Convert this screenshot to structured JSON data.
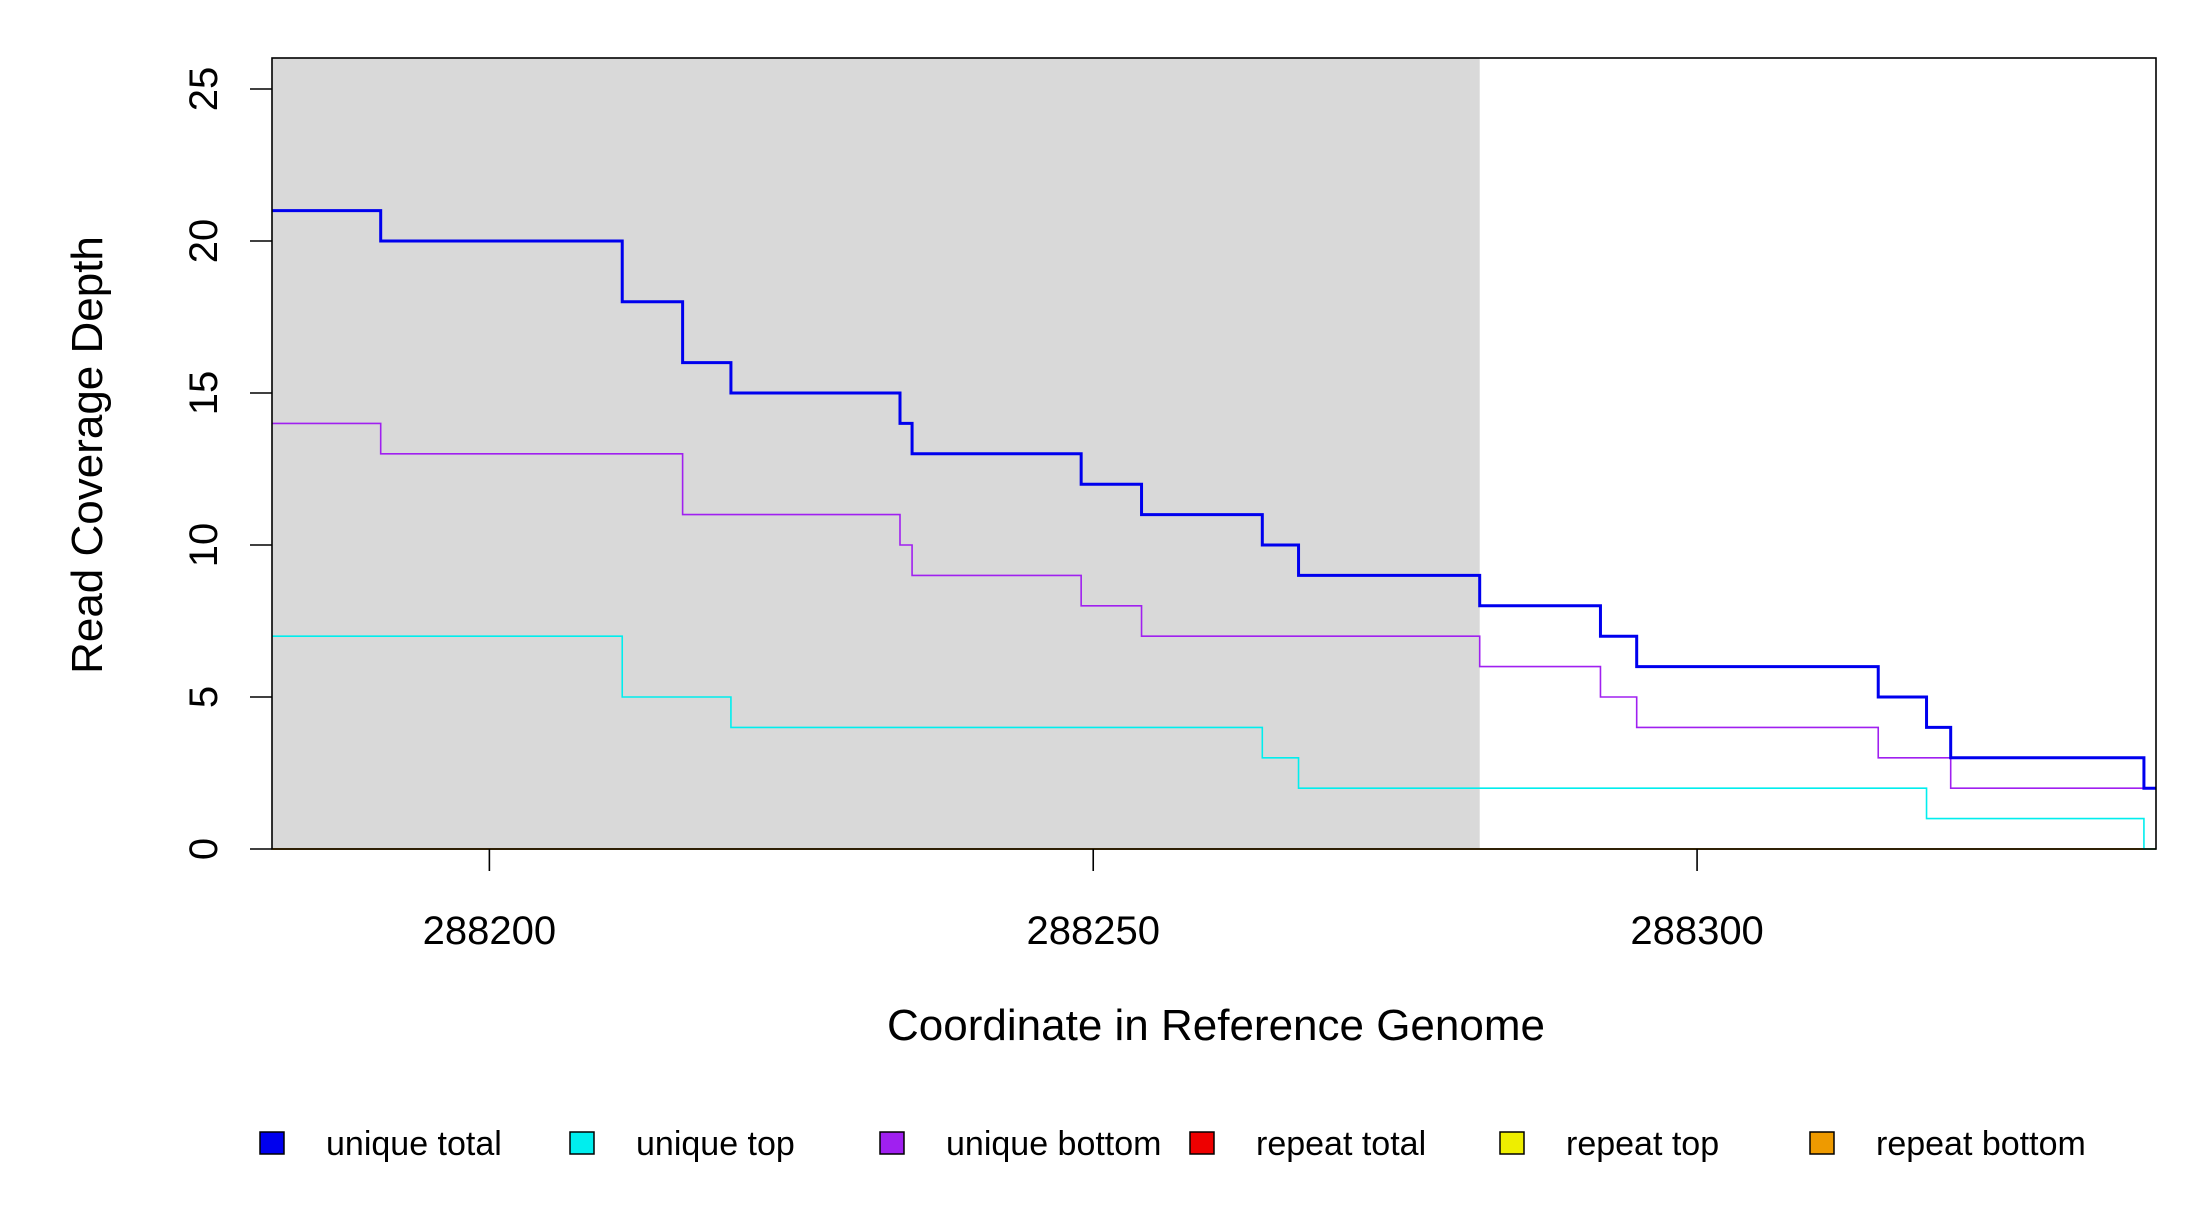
{
  "chart_data": {
    "type": "line",
    "title": "",
    "xlabel": "Coordinate in Reference Genome",
    "ylabel": "Read Coverage Depth",
    "xlim": [
      288182,
      288338
    ],
    "ylim": [
      0,
      26
    ],
    "x_ticks": [
      288200,
      288250,
      288300
    ],
    "y_ticks": [
      0,
      5,
      10,
      15,
      20,
      25
    ],
    "highlight_region": {
      "x_start": 288182,
      "x_end": 288282,
      "color": "#d9d9d9"
    },
    "grid": false,
    "legend_position": "bottom",
    "series": [
      {
        "name": "unique total",
        "color": "#0000ee",
        "steps": [
          [
            288182,
            21
          ],
          [
            288191,
            20
          ],
          [
            288211,
            18
          ],
          [
            288216,
            16
          ],
          [
            288220,
            15
          ],
          [
            288234,
            14
          ],
          [
            288235,
            13
          ],
          [
            288249,
            12
          ],
          [
            288254,
            11
          ],
          [
            288264,
            10
          ],
          [
            288267,
            9
          ],
          [
            288282,
            8
          ],
          [
            288292,
            7
          ],
          [
            288295,
            6
          ],
          [
            288315,
            5
          ],
          [
            288319,
            4
          ],
          [
            288321,
            3
          ],
          [
            288337,
            2
          ],
          [
            288338,
            2
          ]
        ]
      },
      {
        "name": "unique top",
        "color": "#00eeee",
        "steps": [
          [
            288182,
            7
          ],
          [
            288211,
            5
          ],
          [
            288220,
            4
          ],
          [
            288264,
            3
          ],
          [
            288267,
            2
          ],
          [
            288319,
            1
          ],
          [
            288337,
            0
          ],
          [
            288338,
            0
          ]
        ]
      },
      {
        "name": "unique bottom",
        "color": "#a020f0",
        "steps": [
          [
            288182,
            14
          ],
          [
            288191,
            13
          ],
          [
            288216,
            11
          ],
          [
            288234,
            10
          ],
          [
            288235,
            9
          ],
          [
            288249,
            8
          ],
          [
            288254,
            7
          ],
          [
            288282,
            6
          ],
          [
            288292,
            5
          ],
          [
            288295,
            4
          ],
          [
            288315,
            3
          ],
          [
            288321,
            2
          ],
          [
            288338,
            2
          ]
        ]
      },
      {
        "name": "repeat total",
        "color": "#ee0000",
        "steps": [
          [
            288182,
            0
          ],
          [
            288338,
            0
          ]
        ]
      },
      {
        "name": "repeat top",
        "color": "#eeee00",
        "steps": [
          [
            288182,
            0
          ],
          [
            288338,
            0
          ]
        ]
      },
      {
        "name": "repeat bottom",
        "color": "#ee9a00",
        "steps": [
          [
            288182,
            0
          ],
          [
            288338,
            0
          ]
        ]
      }
    ]
  }
}
